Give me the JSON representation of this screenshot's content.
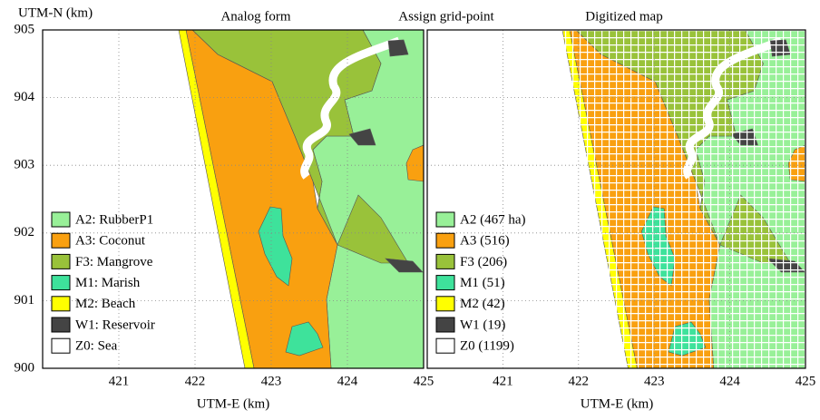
{
  "y_axis": {
    "label": "UTM-N (km)",
    "ylim": [
      900,
      905
    ],
    "ticks": [
      900,
      901,
      902,
      903,
      904,
      905
    ]
  },
  "panels": [
    {
      "title": "Analog form",
      "x_axis": {
        "label": "UTM-E (km)",
        "xlim": [
          420,
          425
        ],
        "ticks": [
          421,
          422,
          423,
          424,
          425
        ]
      },
      "legend": [
        {
          "label": "A2: RubberP1",
          "color": "#98f098"
        },
        {
          "label": "A3: Coconut",
          "color": "#f9a010"
        },
        {
          "label": "F3: Mangrove",
          "color": "#99c23a"
        },
        {
          "label": "M1: Marish",
          "color": "#3ee29b"
        },
        {
          "label": "M2: Beach",
          "color": "#ffff00"
        },
        {
          "label": "W1: Reservoir",
          "color": "#444444"
        },
        {
          "label": "Z0: Sea",
          "color": "#ffffff"
        }
      ]
    },
    {
      "caption": "Assign grid-point",
      "title": "Digitized map",
      "x_axis": {
        "label": "UTM-E (km)",
        "xlim": [
          420,
          425
        ],
        "ticks": [
          421,
          422,
          423,
          424,
          425
        ]
      },
      "legend": [
        {
          "label": "A2 (467 ha)",
          "color": "#98f098"
        },
        {
          "label": "A3 (516)",
          "color": "#f9a010"
        },
        {
          "label": "F3 (206)",
          "color": "#99c23a"
        },
        {
          "label": "M1 (51)",
          "color": "#3ee29b"
        },
        {
          "label": "M2 (42)",
          "color": "#ffff00"
        },
        {
          "label": "W1 (19)",
          "color": "#444444"
        },
        {
          "label": "Z0 (1199)",
          "color": "#ffffff"
        }
      ]
    }
  ]
}
